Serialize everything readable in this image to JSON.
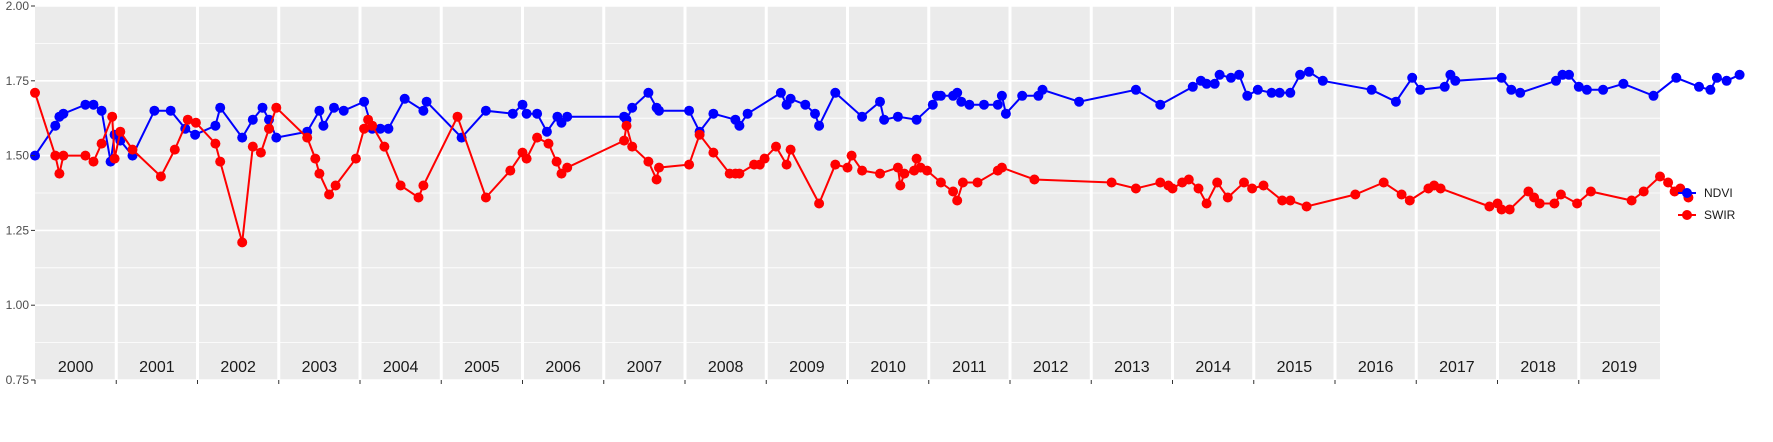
{
  "chart_data": {
    "type": "line",
    "title": "",
    "xlabel": "",
    "ylabel": "",
    "ylim": [
      0.75,
      2.0
    ],
    "yticks": [
      "0.75",
      "1.00",
      "1.25",
      "1.50",
      "1.75",
      "2.00"
    ],
    "xlim": [
      2000.0,
      2020.0
    ],
    "years": [
      "2000",
      "2001",
      "2002",
      "2003",
      "2004",
      "2005",
      "2006",
      "2007",
      "2008",
      "2009",
      "2010",
      "2011",
      "2012",
      "2013",
      "2014",
      "2015",
      "2016",
      "2017",
      "2018",
      "2019"
    ],
    "grid": true,
    "legend_position": "right",
    "colors": {
      "panel": "#ebebeb",
      "grid": "#ffffff"
    },
    "series": [
      {
        "name": "NDVI",
        "color": "#0000ff",
        "points": [
          [
            2000.0,
            1.5
          ],
          [
            2000.25,
            1.6
          ],
          [
            2000.3,
            1.63
          ],
          [
            2000.35,
            1.64
          ],
          [
            2000.62,
            1.67
          ],
          [
            2000.72,
            1.67
          ],
          [
            2000.82,
            1.65
          ],
          [
            2000.93,
            1.48
          ],
          [
            2000.98,
            1.57
          ],
          [
            2001.05,
            1.55
          ],
          [
            2001.2,
            1.5
          ],
          [
            2001.47,
            1.65
          ],
          [
            2001.67,
            1.65
          ],
          [
            2001.85,
            1.59
          ],
          [
            2001.97,
            1.57
          ],
          [
            2002.22,
            1.6
          ],
          [
            2002.28,
            1.66
          ],
          [
            2002.55,
            1.56
          ],
          [
            2002.68,
            1.62
          ],
          [
            2002.8,
            1.66
          ],
          [
            2002.88,
            1.62
          ],
          [
            2002.97,
            1.56
          ],
          [
            2003.35,
            1.58
          ],
          [
            2003.5,
            1.65
          ],
          [
            2003.55,
            1.6
          ],
          [
            2003.68,
            1.66
          ],
          [
            2003.8,
            1.65
          ],
          [
            2004.05,
            1.68
          ],
          [
            2004.15,
            1.59
          ],
          [
            2004.25,
            1.59
          ],
          [
            2004.35,
            1.59
          ],
          [
            2004.55,
            1.69
          ],
          [
            2004.78,
            1.65
          ],
          [
            2004.82,
            1.68
          ],
          [
            2005.25,
            1.56
          ],
          [
            2005.55,
            1.65
          ],
          [
            2005.88,
            1.64
          ],
          [
            2006.0,
            1.67
          ],
          [
            2006.05,
            1.64
          ],
          [
            2006.18,
            1.64
          ],
          [
            2006.3,
            1.58
          ],
          [
            2006.43,
            1.63
          ],
          [
            2006.48,
            1.61
          ],
          [
            2006.55,
            1.63
          ],
          [
            2007.25,
            1.63
          ],
          [
            2007.28,
            1.62
          ],
          [
            2007.35,
            1.66
          ],
          [
            2007.55,
            1.71
          ],
          [
            2007.65,
            1.66
          ],
          [
            2007.68,
            1.65
          ],
          [
            2008.05,
            1.65
          ],
          [
            2008.18,
            1.58
          ],
          [
            2008.35,
            1.64
          ],
          [
            2008.62,
            1.62
          ],
          [
            2008.67,
            1.6
          ],
          [
            2008.77,
            1.64
          ],
          [
            2009.18,
            1.71
          ],
          [
            2009.25,
            1.67
          ],
          [
            2009.3,
            1.69
          ],
          [
            2009.48,
            1.67
          ],
          [
            2009.6,
            1.64
          ],
          [
            2009.65,
            1.6
          ],
          [
            2009.85,
            1.71
          ],
          [
            2010.18,
            1.63
          ],
          [
            2010.4,
            1.68
          ],
          [
            2010.45,
            1.62
          ],
          [
            2010.62,
            1.63
          ],
          [
            2010.85,
            1.62
          ],
          [
            2011.05,
            1.67
          ],
          [
            2011.1,
            1.7
          ],
          [
            2011.15,
            1.7
          ],
          [
            2011.3,
            1.7
          ],
          [
            2011.35,
            1.71
          ],
          [
            2011.4,
            1.68
          ],
          [
            2011.5,
            1.67
          ],
          [
            2011.68,
            1.67
          ],
          [
            2011.85,
            1.67
          ],
          [
            2011.9,
            1.7
          ],
          [
            2011.95,
            1.64
          ],
          [
            2012.15,
            1.7
          ],
          [
            2012.35,
            1.7
          ],
          [
            2012.4,
            1.72
          ],
          [
            2012.85,
            1.68
          ],
          [
            2013.55,
            1.72
          ],
          [
            2013.85,
            1.67
          ],
          [
            2014.25,
            1.73
          ],
          [
            2014.35,
            1.75
          ],
          [
            2014.42,
            1.74
          ],
          [
            2014.52,
            1.74
          ],
          [
            2014.58,
            1.77
          ],
          [
            2014.72,
            1.76
          ],
          [
            2014.82,
            1.77
          ],
          [
            2014.92,
            1.7
          ],
          [
            2015.05,
            1.72
          ],
          [
            2015.22,
            1.71
          ],
          [
            2015.32,
            1.71
          ],
          [
            2015.45,
            1.71
          ],
          [
            2015.57,
            1.77
          ],
          [
            2015.68,
            1.78
          ],
          [
            2015.85,
            1.75
          ],
          [
            2016.45,
            1.72
          ],
          [
            2016.75,
            1.68
          ],
          [
            2016.95,
            1.76
          ],
          [
            2017.05,
            1.72
          ],
          [
            2017.35,
            1.73
          ],
          [
            2017.42,
            1.77
          ],
          [
            2017.48,
            1.75
          ],
          [
            2018.05,
            1.76
          ],
          [
            2018.17,
            1.72
          ],
          [
            2018.28,
            1.71
          ],
          [
            2018.72,
            1.75
          ],
          [
            2018.8,
            1.77
          ],
          [
            2018.88,
            1.77
          ],
          [
            2019.0,
            1.73
          ],
          [
            2019.1,
            1.72
          ],
          [
            2019.3,
            1.72
          ],
          [
            2019.55,
            1.74
          ],
          [
            2019.92,
            1.7
          ],
          [
            2020.2,
            1.76
          ],
          [
            2020.48,
            1.73
          ],
          [
            2020.62,
            1.72
          ],
          [
            2020.7,
            1.76
          ],
          [
            2020.82,
            1.75
          ],
          [
            2020.98,
            1.77
          ]
        ]
      },
      {
        "name": "SWIR",
        "color": "#ff0000",
        "points": [
          [
            2000.0,
            1.71
          ],
          [
            2000.25,
            1.5
          ],
          [
            2000.3,
            1.44
          ],
          [
            2000.35,
            1.5
          ],
          [
            2000.62,
            1.5
          ],
          [
            2000.72,
            1.48
          ],
          [
            2000.82,
            1.54
          ],
          [
            2000.95,
            1.63
          ],
          [
            2000.98,
            1.49
          ],
          [
            2001.05,
            1.58
          ],
          [
            2001.2,
            1.52
          ],
          [
            2001.55,
            1.43
          ],
          [
            2001.72,
            1.52
          ],
          [
            2001.88,
            1.62
          ],
          [
            2001.98,
            1.61
          ],
          [
            2002.22,
            1.54
          ],
          [
            2002.28,
            1.48
          ],
          [
            2002.55,
            1.21
          ],
          [
            2002.68,
            1.53
          ],
          [
            2002.78,
            1.51
          ],
          [
            2002.88,
            1.59
          ],
          [
            2002.97,
            1.66
          ],
          [
            2003.35,
            1.56
          ],
          [
            2003.45,
            1.49
          ],
          [
            2003.5,
            1.44
          ],
          [
            2003.62,
            1.37
          ],
          [
            2003.7,
            1.4
          ],
          [
            2003.95,
            1.49
          ],
          [
            2004.05,
            1.59
          ],
          [
            2004.1,
            1.62
          ],
          [
            2004.15,
            1.6
          ],
          [
            2004.3,
            1.53
          ],
          [
            2004.5,
            1.4
          ],
          [
            2004.72,
            1.36
          ],
          [
            2004.78,
            1.4
          ],
          [
            2005.2,
            1.63
          ],
          [
            2005.55,
            1.36
          ],
          [
            2005.85,
            1.45
          ],
          [
            2006.0,
            1.51
          ],
          [
            2006.05,
            1.49
          ],
          [
            2006.18,
            1.56
          ],
          [
            2006.32,
            1.54
          ],
          [
            2006.42,
            1.48
          ],
          [
            2006.48,
            1.44
          ],
          [
            2006.55,
            1.46
          ],
          [
            2007.25,
            1.55
          ],
          [
            2007.28,
            1.6
          ],
          [
            2007.35,
            1.53
          ],
          [
            2007.55,
            1.48
          ],
          [
            2007.65,
            1.42
          ],
          [
            2007.68,
            1.46
          ],
          [
            2008.05,
            1.47
          ],
          [
            2008.18,
            1.57
          ],
          [
            2008.35,
            1.51
          ],
          [
            2008.55,
            1.44
          ],
          [
            2008.62,
            1.44
          ],
          [
            2008.67,
            1.44
          ],
          [
            2008.85,
            1.47
          ],
          [
            2008.92,
            1.47
          ],
          [
            2008.98,
            1.49
          ],
          [
            2009.12,
            1.53
          ],
          [
            2009.25,
            1.47
          ],
          [
            2009.3,
            1.52
          ],
          [
            2009.65,
            1.34
          ],
          [
            2009.85,
            1.47
          ],
          [
            2010.0,
            1.46
          ],
          [
            2010.05,
            1.5
          ],
          [
            2010.18,
            1.45
          ],
          [
            2010.4,
            1.44
          ],
          [
            2010.62,
            1.46
          ],
          [
            2010.65,
            1.4
          ],
          [
            2010.7,
            1.44
          ],
          [
            2010.82,
            1.45
          ],
          [
            2010.85,
            1.49
          ],
          [
            2010.9,
            1.46
          ],
          [
            2010.98,
            1.45
          ],
          [
            2011.15,
            1.41
          ],
          [
            2011.3,
            1.38
          ],
          [
            2011.35,
            1.35
          ],
          [
            2011.42,
            1.41
          ],
          [
            2011.6,
            1.41
          ],
          [
            2011.85,
            1.45
          ],
          [
            2011.9,
            1.46
          ],
          [
            2012.3,
            1.42
          ],
          [
            2013.25,
            1.41
          ],
          [
            2013.55,
            1.39
          ],
          [
            2013.85,
            1.41
          ],
          [
            2013.95,
            1.4
          ],
          [
            2014.0,
            1.39
          ],
          [
            2014.12,
            1.41
          ],
          [
            2014.2,
            1.42
          ],
          [
            2014.32,
            1.39
          ],
          [
            2014.42,
            1.34
          ],
          [
            2014.55,
            1.41
          ],
          [
            2014.68,
            1.36
          ],
          [
            2014.88,
            1.41
          ],
          [
            2014.98,
            1.39
          ],
          [
            2015.12,
            1.4
          ],
          [
            2015.35,
            1.35
          ],
          [
            2015.45,
            1.35
          ],
          [
            2015.65,
            1.33
          ],
          [
            2016.25,
            1.37
          ],
          [
            2016.6,
            1.41
          ],
          [
            2016.82,
            1.37
          ],
          [
            2016.92,
            1.35
          ],
          [
            2017.15,
            1.39
          ],
          [
            2017.22,
            1.4
          ],
          [
            2017.3,
            1.39
          ],
          [
            2017.9,
            1.33
          ],
          [
            2018.0,
            1.34
          ],
          [
            2018.05,
            1.32
          ],
          [
            2018.15,
            1.32
          ],
          [
            2018.38,
            1.38
          ],
          [
            2018.45,
            1.36
          ],
          [
            2018.52,
            1.34
          ],
          [
            2018.7,
            1.34
          ],
          [
            2018.78,
            1.37
          ],
          [
            2018.98,
            1.34
          ],
          [
            2019.15,
            1.38
          ],
          [
            2019.65,
            1.35
          ],
          [
            2019.8,
            1.38
          ],
          [
            2020.0,
            1.43
          ],
          [
            2020.1,
            1.41
          ],
          [
            2020.18,
            1.38
          ],
          [
            2020.25,
            1.39
          ],
          [
            2020.35,
            1.36
          ]
        ]
      }
    ]
  }
}
